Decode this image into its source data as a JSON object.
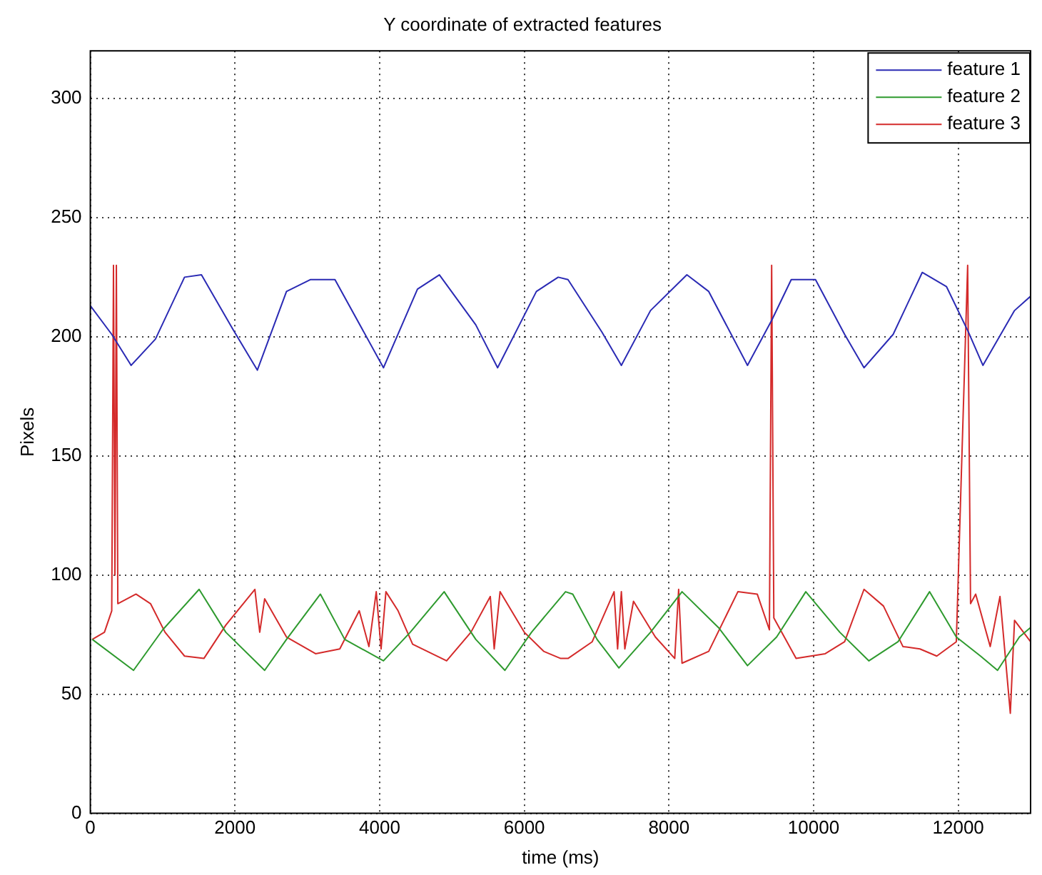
{
  "chart_data": {
    "type": "line",
    "title": "Y coordinate of extracted features",
    "xlabel": "time (ms)",
    "ylabel": "Pixels",
    "xlim": [
      0,
      13000
    ],
    "xticks": [
      0,
      2000,
      4000,
      6000,
      8000,
      10000,
      12000
    ],
    "ylim": [
      0,
      320
    ],
    "yticks": [
      0,
      50,
      100,
      150,
      200,
      250,
      300
    ],
    "grid": true,
    "legend": "top right",
    "marker": "none",
    "line_style": "solid",
    "series": [
      {
        "name": "feature 1",
        "color": "#2a2ab4",
        "x": [
          0,
          296,
          564,
          900,
          1302,
          1536,
          1973,
          2309,
          2712,
          3046,
          3382,
          4053,
          4523,
          4826,
          5329,
          5631,
          6167,
          6469,
          6604,
          7073,
          7342,
          7745,
          8248,
          8550,
          9086,
          9422,
          9691,
          10026,
          10429,
          10697,
          11100,
          11502,
          11838,
          12140,
          12341,
          12778,
          13000
        ],
        "values": [
          213,
          201,
          188,
          199,
          225,
          226,
          203,
          186,
          219,
          224,
          224,
          187,
          220,
          226,
          205,
          187,
          219,
          225,
          224,
          202,
          188,
          211,
          226,
          219,
          188,
          207,
          224,
          224,
          201,
          187,
          201,
          227,
          221,
          202,
          188,
          211,
          217
        ]
      },
      {
        "name": "feature 2",
        "color": "#2e9a2e",
        "x": [
          27,
          597,
          1000,
          1504,
          1873,
          2410,
          2712,
          3181,
          3517,
          4053,
          4423,
          4892,
          5329,
          5732,
          6100,
          6570,
          6670,
          7006,
          7308,
          7745,
          8181,
          8684,
          9086,
          9489,
          9892,
          10362,
          10765,
          11167,
          11603,
          11973,
          12308,
          12543,
          12845,
          13000
        ],
        "values": [
          73,
          60,
          77,
          94,
          76,
          60,
          73,
          92,
          73,
          64,
          76,
          93,
          73,
          60,
          76,
          93,
          92,
          73,
          61,
          76,
          93,
          78,
          62,
          74,
          93,
          76,
          64,
          72,
          93,
          74,
          66,
          60,
          74,
          78
        ]
      },
      {
        "name": "feature 3",
        "color": "#d42a2a",
        "x": [
          27,
          195,
          296,
          320,
          340,
          360,
          380,
          631,
          832,
          1033,
          1302,
          1570,
          1873,
          2275,
          2342,
          2410,
          2712,
          3114,
          3449,
          3718,
          3852,
          3953,
          4020,
          4087,
          4255,
          4456,
          4926,
          5262,
          5530,
          5584,
          5665,
          6000,
          6268,
          6503,
          6604,
          6939,
          7241,
          7290,
          7342,
          7390,
          7510,
          7812,
          8080,
          8134,
          8181,
          8550,
          8953,
          9221,
          9389,
          9420,
          9450,
          9758,
          10161,
          10429,
          10697,
          10966,
          11235,
          11470,
          11703,
          11973,
          12130,
          12170,
          12241,
          12442,
          12577,
          12720,
          12778,
          13000
        ],
        "values": [
          73,
          76,
          85,
          230,
          100,
          230,
          88,
          92,
          88,
          76,
          66,
          65,
          79,
          94,
          76,
          90,
          74,
          67,
          69,
          85,
          70,
          93,
          69,
          93,
          85,
          71,
          64,
          76,
          91,
          69,
          93,
          76,
          68,
          65,
          65,
          72,
          93,
          69,
          93,
          69,
          89,
          74,
          65,
          94,
          63,
          68,
          93,
          92,
          77,
          230,
          82,
          65,
          67,
          72,
          94,
          87,
          70,
          69,
          66,
          72,
          230,
          88,
          92,
          70,
          91,
          42,
          81,
          72
        ]
      }
    ]
  }
}
